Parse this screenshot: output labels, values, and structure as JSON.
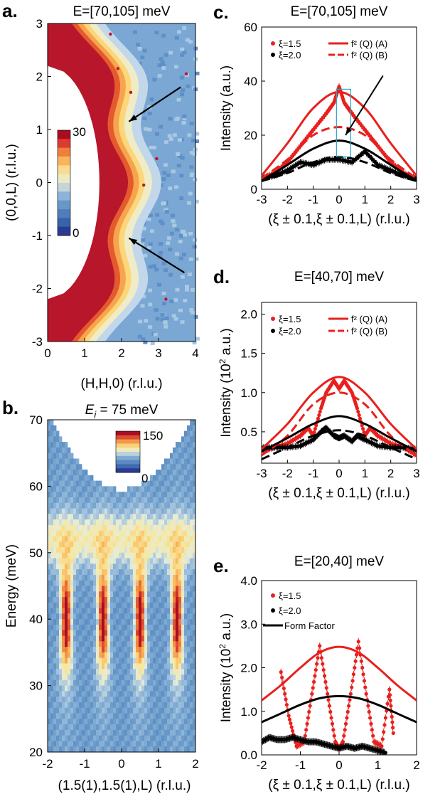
{
  "chart_data": [
    {
      "id": "a",
      "panel_label": "a.",
      "type": "heatmap",
      "title": "E=[70,105] meV",
      "xlabel": "(H,H,0) (r.l.u.)",
      "ylabel": "(0,0,L) (r.l.u.)",
      "xlim": [
        0,
        4
      ],
      "ylim": [
        -3,
        3
      ],
      "xticks": [
        "0",
        "1",
        "2",
        "3",
        "4"
      ],
      "yticks": [
        "3",
        "2",
        "1",
        "0",
        "-1",
        "-2",
        "-3"
      ],
      "colorbar": {
        "min_label": "0",
        "max_label": "30"
      },
      "arrows": [
        {
          "from": [
            3.6,
            1.8
          ],
          "to": [
            2.2,
            1.15
          ]
        },
        {
          "from": [
            3.7,
            -1.7
          ],
          "to": [
            2.2,
            -1.05
          ]
        }
      ],
      "ridge": {
        "center_h_at_L0": 1.65,
        "scallop_amplitude": 0.45,
        "scallop_period_L": 2
      }
    },
    {
      "id": "b",
      "panel_label": "b.",
      "type": "heatmap",
      "title_prefix": "E",
      "title_sub": "i",
      "title_rest": " = 75 meV",
      "xlabel": "(1.5(1),1.5(1),L) (r.l.u.)",
      "ylabel": "Energy (meV)",
      "xlim": [
        -2,
        2
      ],
      "ylim": [
        20,
        70
      ],
      "xticks": [
        "-2",
        "-1",
        "0",
        "1",
        "2"
      ],
      "yticks": [
        "70",
        "60",
        "50",
        "40",
        "30",
        "20"
      ],
      "colorbar": {
        "min_label": "0",
        "max_label": "150"
      },
      "peaks_L": [
        -1.5,
        -0.5,
        0.5,
        1.5
      ],
      "peak_energy": 40
    },
    {
      "id": "c",
      "panel_label": "c.",
      "type": "scatter",
      "title": "E=[70,105] meV",
      "xlabel": "(ξ ± 0.1,ξ ± 0.1,L) (r.l.u.)",
      "ylabel": "Intensity (a.u.)",
      "xlim": [
        -3,
        3
      ],
      "ylim": [
        0,
        60
      ],
      "xticks": [
        "-3",
        "-2",
        "-1",
        "0",
        "1",
        "2",
        "3"
      ],
      "yticks": [
        "0",
        "20",
        "40",
        "60"
      ],
      "legend": [
        "ξ=1.5",
        "ξ=2.0",
        "f² (Q) (A)",
        "f² (Q) (B)"
      ],
      "series": [
        {
          "name": "ξ=1.5",
          "kind": "points",
          "color": "#e8201d",
          "x": [
            -3,
            -2.5,
            -2,
            -1.5,
            -1,
            -0.5,
            -0.2,
            0,
            0.2,
            0.5,
            1,
            1.5,
            2,
            2.5,
            3
          ],
          "y": [
            4,
            6,
            10,
            16,
            22,
            28,
            32,
            38,
            32,
            28,
            22,
            16,
            10,
            6,
            4
          ]
        },
        {
          "name": "ξ=2.0",
          "kind": "points",
          "color": "#000000",
          "x": [
            -3,
            -2.5,
            -2,
            -1.5,
            -1,
            -0.5,
            0,
            0.5,
            1,
            1.5,
            2,
            2.5,
            3
          ],
          "y": [
            4,
            5,
            7,
            10,
            9,
            11,
            11,
            10,
            14,
            9,
            7,
            5,
            4
          ]
        },
        {
          "name": "f² (Q) (A)",
          "kind": "line",
          "color": "#e8201d",
          "x": [
            -3,
            -2,
            -1,
            0,
            1,
            2,
            3
          ],
          "y": [
            5,
            17,
            30,
            36,
            30,
            17,
            5
          ]
        },
        {
          "name": "f² (Q) (B)",
          "kind": "dashed",
          "color": "#e8201d",
          "x": [
            -3,
            -2,
            -1,
            0,
            1,
            2,
            3
          ],
          "y": [
            4,
            11,
            20,
            23,
            20,
            11,
            4
          ]
        },
        {
          "kind": "line",
          "color": "#000000",
          "x": [
            -3,
            -2,
            -1,
            0,
            1,
            2,
            3
          ],
          "y": [
            3,
            9,
            15,
            18,
            15,
            9,
            3
          ]
        },
        {
          "kind": "dashed",
          "color": "#000000",
          "x": [
            -3,
            -2,
            -1,
            0,
            1,
            2,
            3
          ],
          "y": [
            3,
            6,
            10,
            12,
            10,
            6,
            3
          ]
        }
      ]
    },
    {
      "id": "d",
      "panel_label": "d.",
      "type": "scatter",
      "title": "E=[40,70] meV",
      "ylabel_pre": "Intensity (10",
      "ylabel_sup": "2",
      "ylabel_post": " a.u.)",
      "xlabel": "(ξ ± 0.1,ξ ± 0.1,L) (r.l.u.)",
      "xlim": [
        -3,
        3
      ],
      "ylim": [
        0.1,
        2.15
      ],
      "xticks": [
        "-3",
        "-2",
        "-1",
        "0",
        "1",
        "2",
        "3"
      ],
      "yticks": [
        "0.5",
        "1.0",
        "1.5",
        "2.0"
      ],
      "legend": [
        "ξ=1.5",
        "ξ=2.0",
        "f² (Q) (A)",
        "f² (Q) (B)"
      ],
      "series": [
        {
          "name": "ξ=1.5",
          "kind": "points",
          "color": "#e8201d",
          "x": [
            -3,
            -2.5,
            -2,
            -1.5,
            -1.2,
            -1,
            -0.7,
            -0.5,
            -0.2,
            0,
            0.2,
            0.5,
            0.7,
            1,
            1.2,
            1.5,
            2,
            2.5,
            3
          ],
          "y": [
            0.25,
            0.3,
            0.35,
            0.45,
            0.55,
            0.45,
            0.8,
            1.0,
            1.15,
            1.05,
            1.15,
            1.0,
            0.8,
            0.45,
            0.55,
            0.45,
            0.35,
            0.3,
            0.2
          ]
        },
        {
          "name": "ξ=2.0",
          "kind": "points",
          "color": "#000000",
          "x": [
            -3,
            -2.5,
            -2,
            -1.5,
            -1,
            -0.7,
            -0.5,
            -0.2,
            0,
            0.2,
            0.5,
            0.7,
            1,
            1.5,
            2,
            2.5,
            3
          ],
          "y": [
            0.3,
            0.3,
            0.3,
            0.32,
            0.4,
            0.5,
            0.55,
            0.45,
            0.42,
            0.45,
            0.38,
            0.45,
            0.4,
            0.32,
            0.3,
            0.3,
            0.28
          ]
        },
        {
          "name": "f² (Q) (A)",
          "kind": "line",
          "color": "#e8201d",
          "x": [
            -3,
            -2,
            -1,
            0,
            1,
            2,
            3
          ],
          "y": [
            0.28,
            0.6,
            1.0,
            1.2,
            1.0,
            0.6,
            0.28
          ]
        },
        {
          "name": "f² (Q) (B)",
          "kind": "dashed",
          "color": "#e8201d",
          "x": [
            -3,
            -2,
            -1,
            0,
            1,
            2,
            3
          ],
          "y": [
            0.2,
            0.45,
            0.85,
            1.0,
            0.85,
            0.45,
            0.2
          ]
        },
        {
          "kind": "line",
          "color": "#000000",
          "x": [
            -3,
            -2,
            -1,
            0,
            1,
            2,
            3
          ],
          "y": [
            0.25,
            0.42,
            0.6,
            0.7,
            0.6,
            0.42,
            0.25
          ]
        },
        {
          "kind": "dashed",
          "color": "#000000",
          "x": [
            -3,
            -2,
            -1,
            0,
            1,
            2,
            3
          ],
          "y": [
            0.15,
            0.3,
            0.45,
            0.52,
            0.45,
            0.3,
            0.15
          ]
        }
      ]
    },
    {
      "id": "e",
      "panel_label": "e.",
      "type": "scatter",
      "title": "E=[20,40] meV",
      "ylabel_pre": "Intensity (10",
      "ylabel_sup": "2",
      "ylabel_post": " a.u.)",
      "xlabel": "(ξ ± 0.1,ξ ± 0.1,L) (r.l.u.)",
      "xlim": [
        -2,
        2
      ],
      "ylim": [
        0,
        4
      ],
      "xticks": [
        "-2",
        "-1",
        "0",
        "1",
        "2"
      ],
      "yticks": [
        "0.0",
        "1.0",
        "2.0",
        "3.0",
        "4.0"
      ],
      "legend": [
        "ξ=1.5",
        "ξ=2.0",
        "Form Factor"
      ],
      "series": [
        {
          "name": "ξ=1.5",
          "kind": "points",
          "color": "#e8201d",
          "x": [
            -1.5,
            -1.3,
            -1.1,
            -0.9,
            -0.7,
            -0.5,
            -0.3,
            -0.1,
            0,
            0.1,
            0.3,
            0.5,
            0.7,
            0.9,
            1.1,
            1.3,
            1.4
          ],
          "y": [
            1.9,
            0.9,
            0.2,
            0.3,
            1.4,
            2.5,
            1.4,
            0.3,
            0.15,
            0.3,
            1.4,
            2.6,
            1.4,
            0.3,
            0.2,
            1.5,
            0.5
          ]
        },
        {
          "name": "ξ=2.0",
          "kind": "points",
          "color": "#000000",
          "x": [
            -2,
            -1.8,
            -1.6,
            -1.4,
            -1.2,
            -1,
            -0.8,
            -0.6,
            -0.4,
            -0.2,
            0,
            0.2,
            0.4,
            0.6,
            0.8,
            1,
            1.2
          ],
          "y": [
            0.3,
            0.4,
            0.35,
            0.35,
            0.4,
            0.35,
            0.3,
            0.3,
            0.25,
            0.2,
            0.15,
            0.2,
            0.15,
            0.2,
            0.15,
            0.1,
            0.05
          ]
        },
        {
          "kind": "line",
          "color": "#e8201d",
          "x": [
            -2,
            -1.5,
            -1,
            -0.5,
            0,
            0.5,
            1,
            1.5,
            2
          ],
          "y": [
            1.25,
            1.6,
            2.0,
            2.35,
            2.48,
            2.35,
            2.0,
            1.6,
            1.25
          ]
        },
        {
          "name": "Form Factor",
          "kind": "line",
          "color": "#000000",
          "x": [
            -2,
            -1.5,
            -1,
            -0.5,
            0,
            0.5,
            1,
            1.5,
            2
          ],
          "y": [
            0.75,
            0.95,
            1.15,
            1.3,
            1.35,
            1.3,
            1.15,
            0.95,
            0.75
          ]
        }
      ]
    }
  ]
}
